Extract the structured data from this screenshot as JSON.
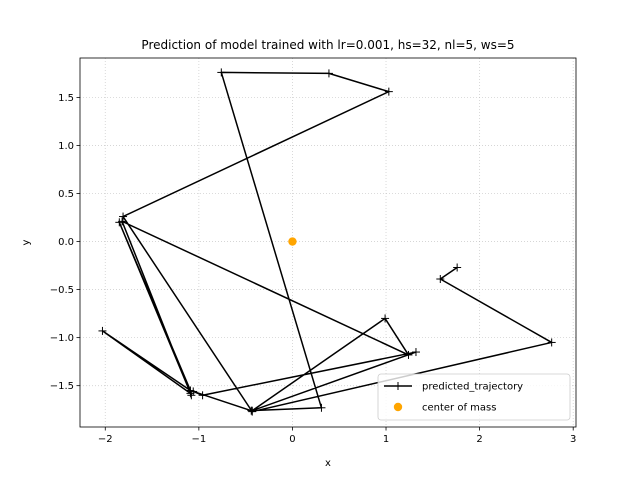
{
  "chart_data": {
    "type": "line",
    "title": "Prediction of model trained with lr=0.001, hs=32, nl=5, ws=5",
    "xlabel": "x",
    "ylabel": "y",
    "xlim": [
      -2.27,
      3.03
    ],
    "ylim": [
      -1.93,
      1.91
    ],
    "xticks": [
      -2,
      -1,
      0,
      1,
      2,
      3
    ],
    "yticks": [
      -1.5,
      -1.0,
      -0.5,
      0.0,
      0.5,
      1.0,
      1.5
    ],
    "xtick_labels": [
      "−2",
      "−1",
      "0",
      "1",
      "2",
      "3"
    ],
    "ytick_labels": [
      "−1.5",
      "−1.0",
      "−0.5",
      "0.0",
      "0.5",
      "1.0",
      "1.5"
    ],
    "grid": true,
    "legend_position": "lower-right",
    "series": [
      {
        "name": "predicted_trajectory",
        "color": "#000000",
        "marker": "+",
        "x": [
          1.76,
          1.58,
          2.77,
          -0.43,
          -1.81,
          1.03,
          0.39,
          -0.76,
          0.31,
          -0.44,
          -1.06,
          -0.96,
          1.32,
          -0.43,
          0.99,
          1.24,
          -1.82,
          -1.09,
          -2.03,
          -1.09,
          -1.85,
          -1.08
        ],
        "y": [
          -0.27,
          -0.39,
          -1.05,
          -1.77,
          0.26,
          1.56,
          1.75,
          1.76,
          -1.73,
          -1.76,
          -1.56,
          -1.6,
          -1.15,
          -1.76,
          -0.8,
          -1.18,
          0.21,
          -1.58,
          -0.93,
          -1.55,
          0.2,
          -1.6
        ]
      },
      {
        "name": "center of mass",
        "color": "#ffa500",
        "marker": "o",
        "x": [
          0.0
        ],
        "y": [
          0.0
        ]
      }
    ]
  }
}
